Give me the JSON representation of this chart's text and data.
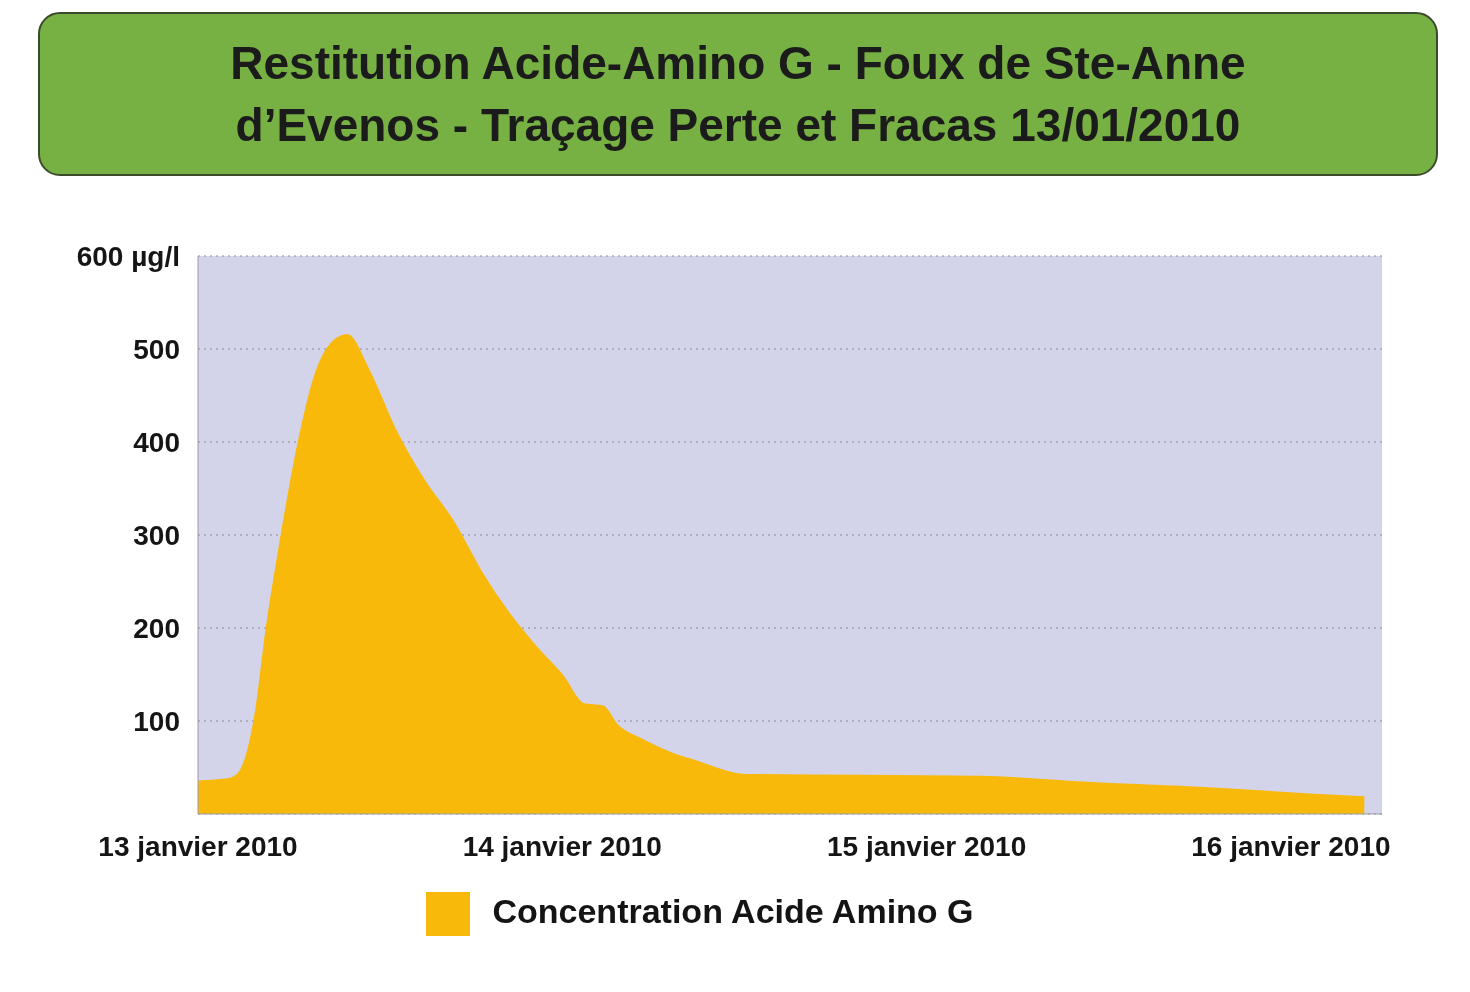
{
  "chart_data": {
    "type": "area",
    "title": "Restitution Acide-Amino G - Foux de Ste-Anne d’Evenos - Traçage Perte et Fracas 13/01/2010",
    "x": [
      "2010-01-13T00:00",
      "2010-01-13T01:50",
      "2010-01-13T02:35",
      "2010-01-13T03:50",
      "2010-01-13T04:30",
      "2010-01-13T05:20",
      "2010-01-13T06:35",
      "2010-01-13T07:40",
      "2010-01-13T08:55",
      "2010-01-13T09:50",
      "2010-01-13T11:10",
      "2010-01-13T13:00",
      "2010-01-13T14:55",
      "2010-01-13T16:50",
      "2010-01-13T18:40",
      "2010-01-13T20:25",
      "2010-01-13T22:15",
      "2010-01-14T00:00",
      "2010-01-14T01:25",
      "2010-01-14T02:40",
      "2010-01-14T03:35",
      "2010-01-14T05:15",
      "2010-01-14T07:05",
      "2010-01-14T08:45",
      "2010-01-14T12:00",
      "2010-01-14T19:45",
      "2010-01-15T03:35",
      "2010-01-15T11:10",
      "2010-01-15T18:20",
      "2010-01-16T01:15",
      "2010-01-16T04:50"
    ],
    "series": [
      {
        "name": "Concentration Acide Amino G",
        "color": "#f8b90a",
        "values": [
          35,
          37,
          42,
          112,
          197,
          283,
          396,
          469,
          508,
          515,
          480,
          413,
          358,
          314,
          260,
          217,
          180,
          149,
          118,
          116,
          96,
          80,
          66,
          57,
          42,
          41,
          40,
          33,
          28,
          21,
          18
        ]
      }
    ],
    "xlim": [
      "2010-01-13T00:00",
      "2010-01-16T06:00"
    ],
    "xticks": [
      {
        "value": "2010-01-13",
        "label": "13 janvier 2010"
      },
      {
        "value": "2010-01-14",
        "label": "14 janvier 2010"
      },
      {
        "value": "2010-01-15",
        "label": "15 janvier 2010"
      },
      {
        "value": "2010-01-16",
        "label": "16 janvier 2010"
      }
    ],
    "ylim": [
      0,
      600
    ],
    "yticks": [
      {
        "value": 0,
        "label": null
      },
      100,
      200,
      300,
      400,
      500,
      {
        "value": 600,
        "label": "600 µg/l"
      }
    ],
    "grid": "y",
    "legend": "bottom"
  }
}
